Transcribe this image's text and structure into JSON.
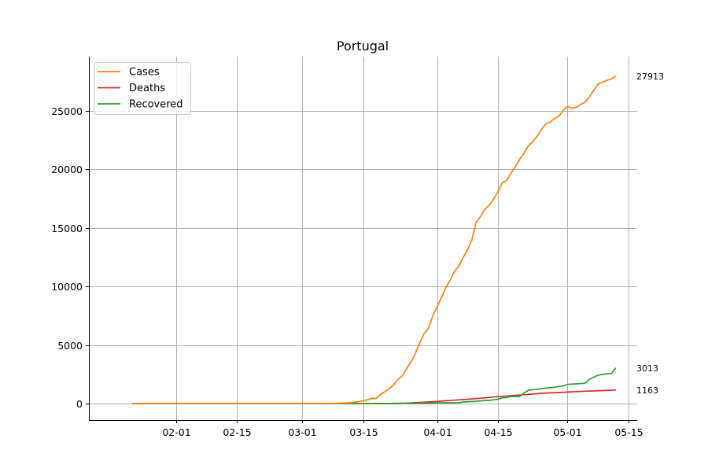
{
  "chart_data": {
    "type": "line",
    "title": "Portugal",
    "xlabel": "",
    "ylabel": "",
    "x_type": "date",
    "xlim": [
      "2020-01-12",
      "2020-05-17"
    ],
    "ylim": [
      -1400,
      29600
    ],
    "grid": true,
    "legend_position": "top-left",
    "x_ticks": [
      "2020-02-01",
      "2020-02-15",
      "2020-03-01",
      "2020-03-15",
      "2020-04-01",
      "2020-04-15",
      "2020-05-01",
      "2020-05-15"
    ],
    "x_tick_labels": [
      "02-01",
      "02-15",
      "03-01",
      "03-15",
      "04-01",
      "04-15",
      "05-01",
      "05-15"
    ],
    "y_ticks": [
      0,
      5000,
      10000,
      15000,
      20000,
      25000
    ],
    "y_tick_labels": [
      "0",
      "5000",
      "10000",
      "15000",
      "20000",
      "25000"
    ],
    "series": [
      {
        "name": "Cases",
        "color": "#ff7f0e",
        "end_label": "27913",
        "points": [
          [
            "2020-01-22",
            0
          ],
          [
            "2020-02-15",
            0
          ],
          [
            "2020-03-01",
            0
          ],
          [
            "2020-03-02",
            2
          ],
          [
            "2020-03-04",
            5
          ],
          [
            "2020-03-06",
            13
          ],
          [
            "2020-03-08",
            30
          ],
          [
            "2020-03-10",
            41
          ],
          [
            "2020-03-12",
            78
          ],
          [
            "2020-03-14",
            169
          ],
          [
            "2020-03-16",
            331
          ],
          [
            "2020-03-17",
            448
          ],
          [
            "2020-03-18",
            448
          ],
          [
            "2020-03-19",
            785
          ],
          [
            "2020-03-20",
            1020
          ],
          [
            "2020-03-21",
            1280
          ],
          [
            "2020-03-22",
            1600
          ],
          [
            "2020-03-23",
            2060
          ],
          [
            "2020-03-24",
            2362
          ],
          [
            "2020-03-25",
            2995
          ],
          [
            "2020-03-26",
            3544
          ],
          [
            "2020-03-27",
            4268
          ],
          [
            "2020-03-28",
            5170
          ],
          [
            "2020-03-29",
            5962
          ],
          [
            "2020-03-30",
            6408
          ],
          [
            "2020-03-31",
            7443
          ],
          [
            "2020-04-01",
            8251
          ],
          [
            "2020-04-02",
            9034
          ],
          [
            "2020-04-03",
            9886
          ],
          [
            "2020-04-04",
            10524
          ],
          [
            "2020-04-05",
            11278
          ],
          [
            "2020-04-06",
            11730
          ],
          [
            "2020-04-07",
            12442
          ],
          [
            "2020-04-08",
            13141
          ],
          [
            "2020-04-09",
            13956
          ],
          [
            "2020-04-10",
            15472
          ],
          [
            "2020-04-11",
            15987
          ],
          [
            "2020-04-12",
            16585
          ],
          [
            "2020-04-13",
            16934
          ],
          [
            "2020-04-14",
            17448
          ],
          [
            "2020-04-15",
            18091
          ],
          [
            "2020-04-16",
            18841
          ],
          [
            "2020-04-17",
            19022
          ],
          [
            "2020-04-18",
            19685
          ],
          [
            "2020-04-19",
            20206
          ],
          [
            "2020-04-20",
            20863
          ],
          [
            "2020-04-21",
            21379
          ],
          [
            "2020-04-22",
            21982
          ],
          [
            "2020-04-23",
            22353
          ],
          [
            "2020-04-24",
            22797
          ],
          [
            "2020-04-25",
            23392
          ],
          [
            "2020-04-26",
            23864
          ],
          [
            "2020-04-27",
            24027
          ],
          [
            "2020-04-28",
            24322
          ],
          [
            "2020-04-29",
            24505
          ],
          [
            "2020-04-30",
            25045
          ],
          [
            "2020-05-01",
            25351
          ],
          [
            "2020-05-02",
            25190
          ],
          [
            "2020-05-03",
            25282
          ],
          [
            "2020-05-04",
            25524
          ],
          [
            "2020-05-05",
            25702
          ],
          [
            "2020-05-06",
            26182
          ],
          [
            "2020-05-07",
            26715
          ],
          [
            "2020-05-08",
            27268
          ],
          [
            "2020-05-09",
            27406
          ],
          [
            "2020-05-10",
            27581
          ],
          [
            "2020-05-11",
            27679
          ],
          [
            "2020-05-12",
            27913
          ]
        ]
      },
      {
        "name": "Deaths",
        "color": "#d62728",
        "end_label": "1163",
        "points": [
          [
            "2020-01-22",
            0
          ],
          [
            "2020-03-15",
            0
          ],
          [
            "2020-03-20",
            6
          ],
          [
            "2020-03-25",
            43
          ],
          [
            "2020-03-28",
            100
          ],
          [
            "2020-04-01",
            187
          ],
          [
            "2020-04-05",
            295
          ],
          [
            "2020-04-10",
            435
          ],
          [
            "2020-04-15",
            599
          ],
          [
            "2020-04-20",
            735
          ],
          [
            "2020-04-25",
            880
          ],
          [
            "2020-05-01",
            989
          ],
          [
            "2020-05-05",
            1063
          ],
          [
            "2020-05-09",
            1114
          ],
          [
            "2020-05-12",
            1163
          ]
        ]
      },
      {
        "name": "Recovered",
        "color": "#2ca02c",
        "end_label": "3013",
        "points": [
          [
            "2020-01-22",
            0
          ],
          [
            "2020-03-20",
            5
          ],
          [
            "2020-03-25",
            22
          ],
          [
            "2020-03-30",
            43
          ],
          [
            "2020-04-01",
            68
          ],
          [
            "2020-04-05",
            75
          ],
          [
            "2020-04-06",
            75
          ],
          [
            "2020-04-07",
            140
          ],
          [
            "2020-04-10",
            205
          ],
          [
            "2020-04-12",
            277
          ],
          [
            "2020-04-13",
            277
          ],
          [
            "2020-04-15",
            383
          ],
          [
            "2020-04-16",
            493
          ],
          [
            "2020-04-17",
            519
          ],
          [
            "2020-04-18",
            610
          ],
          [
            "2020-04-20",
            610
          ],
          [
            "2020-04-21",
            917
          ],
          [
            "2020-04-22",
            1143
          ],
          [
            "2020-04-23",
            1191
          ],
          [
            "2020-04-24",
            1228
          ],
          [
            "2020-04-25",
            1277
          ],
          [
            "2020-04-26",
            1329
          ],
          [
            "2020-04-28",
            1389
          ],
          [
            "2020-04-29",
            1470
          ],
          [
            "2020-04-30",
            1512
          ],
          [
            "2020-05-01",
            1647
          ],
          [
            "2020-05-04",
            1712
          ],
          [
            "2020-05-05",
            1743
          ],
          [
            "2020-05-06",
            2076
          ],
          [
            "2020-05-07",
            2258
          ],
          [
            "2020-05-08",
            2422
          ],
          [
            "2020-05-09",
            2499
          ],
          [
            "2020-05-10",
            2549
          ],
          [
            "2020-05-11",
            2549
          ],
          [
            "2020-05-12",
            3013
          ]
        ]
      }
    ]
  }
}
